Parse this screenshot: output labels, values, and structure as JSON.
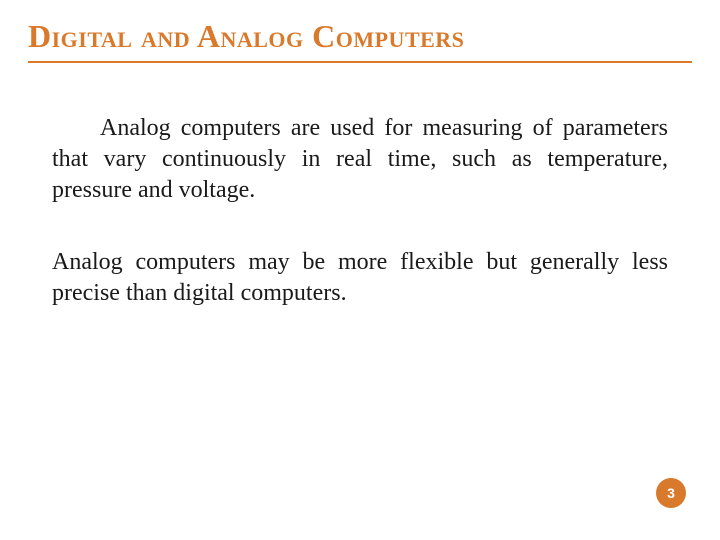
{
  "slide": {
    "title": "Digital and Analog Computers",
    "paragraph1": "Analog computers are used for measuring of parameters that vary continuously in real time, such as temperature, pressure and voltage.",
    "paragraph2": "Analog computers may be more flexible but generally less precise than digital computers.",
    "page_number": "3"
  },
  "style": {
    "accent_color": "#d9792b",
    "background_color": "#ffffff",
    "title_fontsize": 32,
    "body_fontsize": 24,
    "badge_fontsize": 14,
    "font_family_title": "Georgia, serif",
    "font_family_body": "Georgia, serif"
  }
}
